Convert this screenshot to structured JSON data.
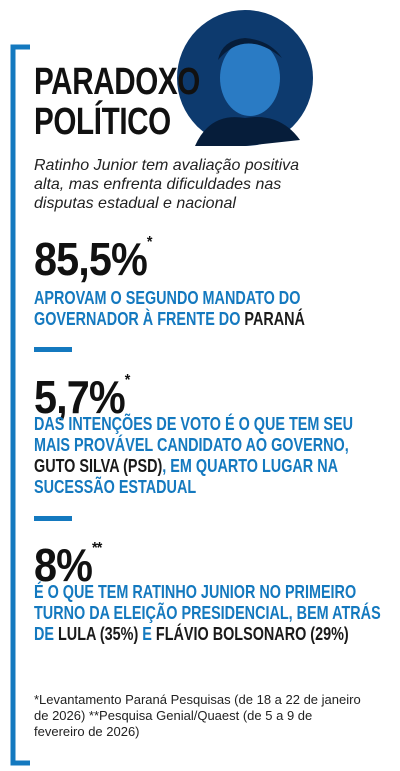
{
  "header": {
    "title_lines": [
      "PARADOXO",
      "POLÍTICO"
    ],
    "subtitle": "Ratinho Junior tem avaliação positiva alta, mas enfrenta dificuldades nas disputas estadual e nacional"
  },
  "stats": [
    {
      "figure": "85,5%",
      "mark": "*",
      "description": [
        {
          "text": "APROVAM O SEGUNDO MANDATO DO GOVERNADOR À FRENTE DO ",
          "color": "#1479bf"
        },
        {
          "text": "PARANÁ",
          "color": "#1a1a1a"
        }
      ]
    },
    {
      "figure": "5,7%",
      "mark": "*",
      "description": [
        {
          "text": "DAS INTENÇÕES DE VOTO É O QUE TEM SEU MAIS PROVÁVEL CANDIDATO AO GOVERNO, ",
          "color": "#1479bf"
        },
        {
          "text": "GUTO SILVA (PSD)",
          "color": "#1a1a1a"
        },
        {
          "text": ", EM QUARTO LUGAR NA SUCESSÃO ESTADUAL",
          "color": "#1479bf"
        }
      ]
    },
    {
      "figure": "8%",
      "mark": "**",
      "description": [
        {
          "text": "É O QUE TEM RATINHO JUNIOR NO PRIMEIRO TURNO DA ELEIÇÃO PRESIDENCIAL, BEM ATRÁS DE ",
          "color": "#1479bf"
        },
        {
          "text": "LULA (35%)",
          "color": "#1a1a1a"
        },
        {
          "text": " E ",
          "color": "#1479bf"
        },
        {
          "text": "FLÁVIO BOLSONARO (29%)",
          "color": "#1a1a1a"
        }
      ]
    }
  ],
  "footnote": "*Levantamento Paraná Pesquisas (de 18 a 22 de janeiro de 2026)  **Pesquisa Genial/Quaest (de 5 a 9 de fevereiro de 2026)"
}
